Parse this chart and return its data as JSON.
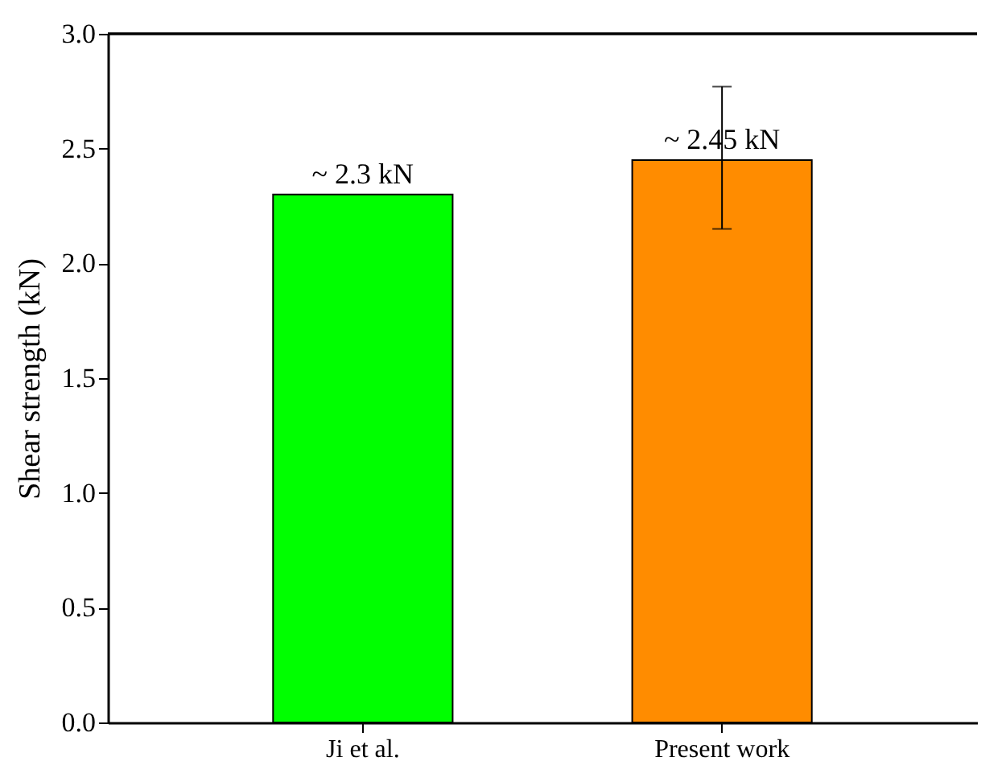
{
  "chart_data": {
    "type": "bar",
    "ylabel": "Shear strength (kN)",
    "categories": [
      "Ji et al.",
      "Present work"
    ],
    "values": [
      2.3,
      2.45
    ],
    "colors": [
      "#00ff00",
      "#ff8c00"
    ],
    "errors": [
      null,
      [
        2.15,
        2.77
      ]
    ],
    "value_labels": [
      "~ 2.3 kN",
      "~ 2.45 kN"
    ],
    "ylim": [
      0,
      3.0
    ],
    "yticks": [
      {
        "value": 0,
        "label": "0.0"
      },
      {
        "value": 0.5,
        "label": "0.5"
      },
      {
        "value": 1,
        "label": "1.0"
      },
      {
        "value": 1.5,
        "label": "1.5"
      },
      {
        "value": 2,
        "label": "2.0"
      },
      {
        "value": 2.5,
        "label": "2.5"
      },
      {
        "value": 3,
        "label": "3.0"
      }
    ],
    "grid": false
  }
}
